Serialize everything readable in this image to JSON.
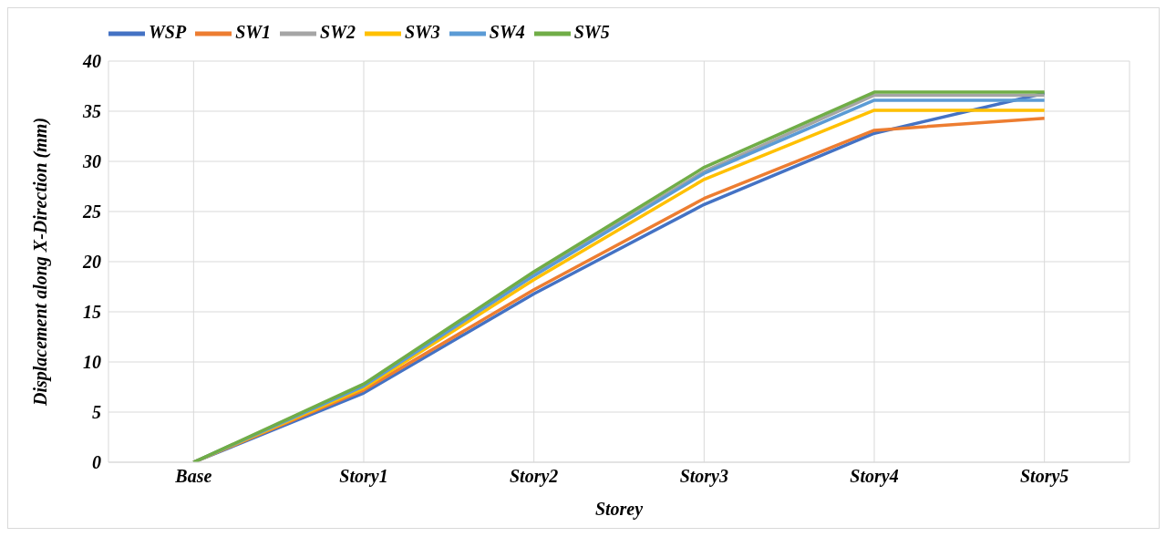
{
  "chart_data": {
    "type": "line",
    "xlabel": "Storey",
    "ylabel": "Displacement along X-Direction (mm)",
    "categories": [
      "Base",
      "Story1",
      "Story2",
      "Story3",
      "Story4",
      "Story5"
    ],
    "series": [
      {
        "name": "WSP",
        "color": "#4472c4",
        "values": [
          0,
          6.9,
          16.8,
          25.7,
          32.8,
          36.8
        ]
      },
      {
        "name": "SW1",
        "color": "#ed7d31",
        "values": [
          0,
          7.2,
          17.2,
          26.3,
          33.1,
          34.3
        ]
      },
      {
        "name": "SW2",
        "color": "#a5a5a5",
        "values": [
          0,
          7.6,
          18.8,
          29.0,
          36.6,
          36.6
        ]
      },
      {
        "name": "SW3",
        "color": "#ffc000",
        "values": [
          0,
          7.4,
          18.2,
          28.2,
          35.1,
          35.1
        ]
      },
      {
        "name": "SW4",
        "color": "#5b9bd5",
        "values": [
          0,
          7.6,
          18.6,
          28.8,
          36.1,
          36.1
        ]
      },
      {
        "name": "SW5",
        "color": "#70ad47",
        "values": [
          0,
          7.8,
          19.0,
          29.4,
          36.9,
          36.9
        ]
      }
    ],
    "ylim": [
      0,
      40
    ],
    "yticks": [
      0,
      5,
      10,
      15,
      20,
      25,
      30,
      35,
      40
    ],
    "grid": true,
    "legend": "top",
    "marker": "none",
    "line_style": "solid"
  }
}
